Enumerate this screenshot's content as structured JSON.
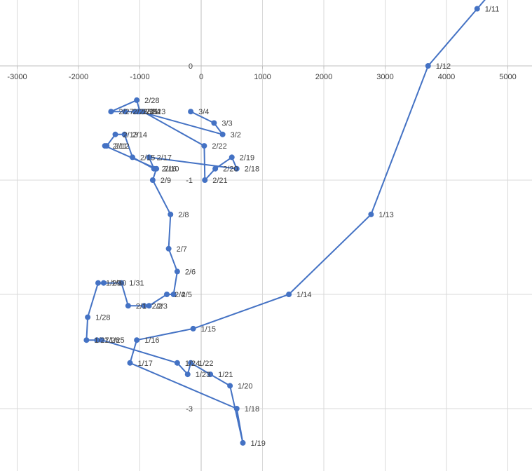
{
  "chart_data": {
    "type": "scatter",
    "title": "",
    "xlabel": "",
    "ylabel": "",
    "xlim": [
      -3000,
      5500
    ],
    "ylim": [
      -3.3,
      0.6
    ],
    "grid": true,
    "legend": "none",
    "x_ticks": [
      -3000,
      -2000,
      -1000,
      0,
      1000,
      2000,
      3000,
      4000,
      5000
    ],
    "y_ticks": [
      0,
      -1,
      -3
    ],
    "x_tick_labels": [
      "-3000",
      "-2000",
      "-1000",
      "0",
      "1000",
      "2000",
      "3000",
      "4000",
      "5000"
    ],
    "y_tick_labels": [
      "0",
      "-1",
      "-3"
    ],
    "series": [
      {
        "color": "#4472c4",
        "points": [
          {
            "label": "1/11",
            "x": 4500,
            "y": 0.5
          },
          {
            "label": "1/12",
            "x": 3700,
            "y": 0.0
          },
          {
            "label": "1/13",
            "x": 2770,
            "y": -1.3
          },
          {
            "label": "1/14",
            "x": 1430,
            "y": -2.0
          },
          {
            "label": "1/15",
            "x": -130,
            "y": -2.3
          },
          {
            "label": "1/16",
            "x": -1050,
            "y": -2.4
          },
          {
            "label": "1/17",
            "x": -1160,
            "y": -2.6
          },
          {
            "label": "1/18",
            "x": 580,
            "y": -3.0
          },
          {
            "label": "1/19",
            "x": 680,
            "y": -3.3
          },
          {
            "label": "1/20",
            "x": 470,
            "y": -2.8
          },
          {
            "label": "1/21",
            "x": 150,
            "y": -2.7
          },
          {
            "label": "1/22",
            "x": -170,
            "y": -2.6
          },
          {
            "label": "1/23",
            "x": -220,
            "y": -2.7
          },
          {
            "label": "1/24",
            "x": -390,
            "y": -2.6
          },
          {
            "label": "1/25",
            "x": -1620,
            "y": -2.4
          },
          {
            "label": "1/26",
            "x": -1700,
            "y": -2.4
          },
          {
            "label": "1/27",
            "x": -1870,
            "y": -2.4
          },
          {
            "label": "1/28",
            "x": -1850,
            "y": -2.2
          },
          {
            "label": "1/29",
            "x": -1680,
            "y": -1.9
          },
          {
            "label": "1/30",
            "x": -1590,
            "y": -1.9
          },
          {
            "label": "1/31",
            "x": -1300,
            "y": -1.9
          },
          {
            "label": "2/1",
            "x": -1190,
            "y": -2.1
          },
          {
            "label": "2/2",
            "x": -930,
            "y": -2.1
          },
          {
            "label": "2/3",
            "x": -850,
            "y": -2.1
          },
          {
            "label": "2/4",
            "x": -560,
            "y": -2.0
          },
          {
            "label": "2/5",
            "x": -450,
            "y": -2.0
          },
          {
            "label": "2/6",
            "x": -390,
            "y": -1.8
          },
          {
            "label": "2/7",
            "x": -530,
            "y": -1.6
          },
          {
            "label": "2/8",
            "x": -500,
            "y": -1.3
          },
          {
            "label": "2/9",
            "x": -790,
            "y": -1.0
          },
          {
            "label": "2/10",
            "x": -730,
            "y": -0.9
          },
          {
            "label": "2/11",
            "x": -1570,
            "y": -0.7
          },
          {
            "label": "2/12",
            "x": -1540,
            "y": -0.7
          },
          {
            "label": "2/13",
            "x": -1400,
            "y": -0.6
          },
          {
            "label": "2/14",
            "x": -1250,
            "y": -0.6
          },
          {
            "label": "2/15",
            "x": -1120,
            "y": -0.8
          },
          {
            "label": "2/16",
            "x": -770,
            "y": -0.9
          },
          {
            "label": "2/17",
            "x": -850,
            "y": -0.8
          },
          {
            "label": "2/18",
            "x": 580,
            "y": -0.9
          },
          {
            "label": "2/19",
            "x": 500,
            "y": -0.8
          },
          {
            "label": "2/20",
            "x": 230,
            "y": -0.9
          },
          {
            "label": "2/21",
            "x": 60,
            "y": -1.0
          },
          {
            "label": "2/22",
            "x": 50,
            "y": -0.7
          },
          {
            "label": "2/23",
            "x": -950,
            "y": -0.4
          },
          {
            "label": "2/24",
            "x": -1030,
            "y": -0.4
          },
          {
            "label": "2/25",
            "x": -1080,
            "y": -0.4
          },
          {
            "label": "2/26",
            "x": -1240,
            "y": -0.4
          },
          {
            "label": "2/27",
            "x": -1470,
            "y": -0.4
          },
          {
            "label": "2/28",
            "x": -1050,
            "y": -0.3
          },
          {
            "label": "3/1",
            "x": -1000,
            "y": -0.4
          },
          {
            "label": "3/2",
            "x": 350,
            "y": -0.6
          },
          {
            "label": "3/3",
            "x": 210,
            "y": -0.5
          },
          {
            "label": "3/4",
            "x": -170,
            "y": -0.4
          }
        ]
      }
    ]
  }
}
